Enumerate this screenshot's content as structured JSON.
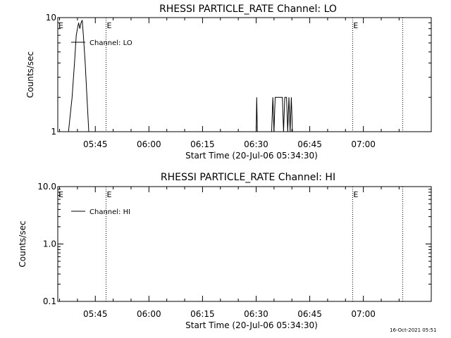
{
  "footer_stamp": "16-Oct-2021 05:51",
  "chart_data": [
    {
      "type": "line",
      "title": "RHESSI PARTICLE_RATE Channel: LO",
      "xlabel": "Start Time (20-Jul-06 05:34:30)",
      "ylabel": "Counts/sec",
      "yscale": "log",
      "ylim": [
        1,
        10
      ],
      "xlim": [
        "05:34:30",
        "07:19:00"
      ],
      "ytick_labels": [
        "1",
        "10"
      ],
      "xtick_labels": [
        "05:45",
        "06:00",
        "06:15",
        "06:30",
        "06:45",
        "07:00"
      ],
      "xtick_times": [
        "05:45",
        "06:00",
        "06:15",
        "06:30",
        "06:45",
        "07:00"
      ],
      "grid": false,
      "legend": {
        "position": "top-left",
        "entries": [
          "Channel: LO"
        ]
      },
      "markers": [
        {
          "time": "05:48",
          "label": "E"
        },
        {
          "time": "06:57",
          "label": "E"
        },
        {
          "time": "07:11",
          "label": ""
        }
      ],
      "series": [
        {
          "name": "Channel: LO",
          "points": [
            [
              "05:37:30",
              1
            ],
            [
              "05:38:30",
              2
            ],
            [
              "05:39:10",
              4
            ],
            [
              "05:39:40",
              7
            ],
            [
              "05:40:00",
              8
            ],
            [
              "05:40:20",
              9
            ],
            [
              "05:40:40",
              8
            ],
            [
              "05:41:00",
              9
            ],
            [
              "05:41:20",
              9.5
            ],
            [
              "05:41:40",
              7
            ],
            [
              "05:42:10",
              4
            ],
            [
              "05:42:40",
              2
            ],
            [
              "05:43:10",
              1
            ],
            [
              "05:43:30",
              1
            ],
            [
              "06:30:00",
              1
            ],
            [
              "06:30:10",
              2
            ],
            [
              "06:30:20",
              1
            ],
            [
              "06:34:20",
              1
            ],
            [
              "06:34:40",
              2
            ],
            [
              "06:35:00",
              1
            ],
            [
              "06:35:20",
              2
            ],
            [
              "06:36:00",
              2
            ],
            [
              "06:37:20",
              2
            ],
            [
              "06:37:40",
              1
            ],
            [
              "06:38:00",
              2
            ],
            [
              "06:38:30",
              2
            ],
            [
              "06:38:50",
              1
            ],
            [
              "06:39:10",
              2
            ],
            [
              "06:39:30",
              1
            ],
            [
              "06:39:50",
              2
            ],
            [
              "06:40:10",
              1
            ]
          ]
        }
      ]
    },
    {
      "type": "line",
      "title": "RHESSI PARTICLE_RATE Channel: HI",
      "xlabel": "Start Time (20-Jul-06 05:34:30)",
      "ylabel": "Counts/sec",
      "yscale": "log",
      "ylim": [
        0.1,
        10
      ],
      "xlim": [
        "05:34:30",
        "07:19:00"
      ],
      "ytick_labels": [
        "0.1",
        "1.0",
        "10.0"
      ],
      "xtick_labels": [
        "05:45",
        "06:00",
        "06:15",
        "06:30",
        "06:45",
        "07:00"
      ],
      "xtick_times": [
        "05:45",
        "06:00",
        "06:15",
        "06:30",
        "06:45",
        "07:00"
      ],
      "grid": false,
      "legend": {
        "position": "top-left",
        "entries": [
          "Channel: HI"
        ]
      },
      "markers": [
        {
          "time": "05:48",
          "label": "E"
        },
        {
          "time": "06:57",
          "label": "E"
        },
        {
          "time": "07:11",
          "label": ""
        }
      ],
      "series": [
        {
          "name": "Channel: HI",
          "points": []
        }
      ]
    }
  ]
}
